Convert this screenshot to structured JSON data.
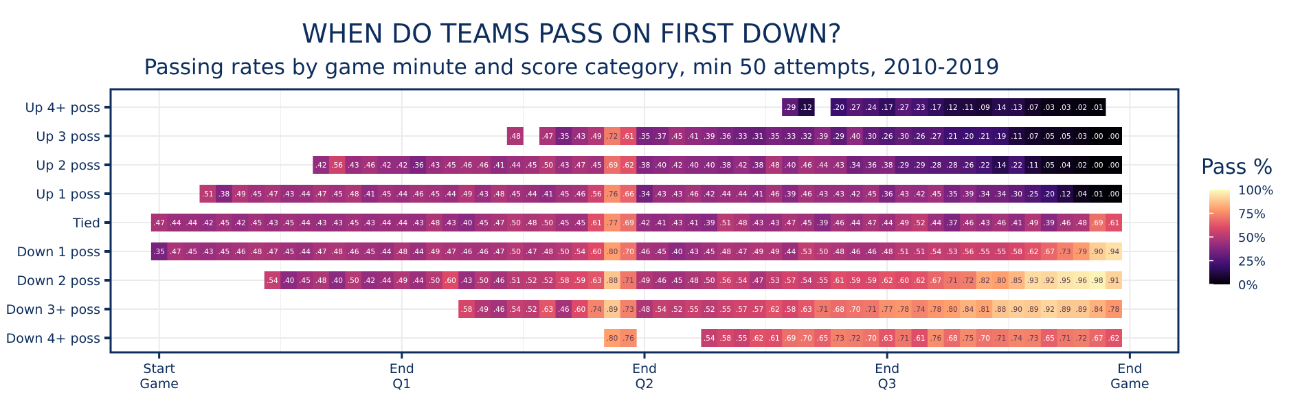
{
  "chart_data": {
    "type": "heatmap",
    "title": "WHEN DO TEAMS PASS ON FIRST DOWN?",
    "subtitle": "Passing rates by game minute and score category, min 50 attempts, 2010-2019",
    "rows": [
      "Up 4+ poss",
      "Up 3 poss",
      "Up 2 poss",
      "Up 1 poss",
      "Tied",
      "Down 1 poss",
      "Down 2 poss",
      "Down 3+ poss",
      "Down 4+ poss"
    ],
    "x_ticks": [
      {
        "minute": 0,
        "line1": "Start",
        "line2": "Game"
      },
      {
        "minute": 15,
        "line1": "End",
        "line2": "Q1"
      },
      {
        "minute": 30,
        "line1": "End",
        "line2": "Q2"
      },
      {
        "minute": 45,
        "line1": "End",
        "line2": "Q3"
      },
      {
        "minute": 60,
        "line1": "End",
        "line2": "Game"
      }
    ],
    "xlim": [
      -3,
      63
    ],
    "grid": true,
    "values": [
      {
        "row": "Up 4+ poss",
        "start": 39,
        "values": [
          ".29",
          ".12",
          "",
          ".20",
          ".27",
          ".24",
          ".17",
          ".27",
          ".23",
          ".17",
          ".12",
          ".11",
          ".09",
          ".14",
          ".13",
          ".07",
          ".03",
          ".03",
          ".02",
          ".01"
        ]
      },
      {
        "row": "Up 3 poss",
        "start": 22,
        "values": [
          ".48",
          "",
          ".47",
          ".35",
          ".43",
          ".49",
          ".72",
          ".61",
          ".35",
          ".37",
          ".45",
          ".41",
          ".39",
          ".36",
          ".33",
          ".31",
          ".35",
          ".33",
          ".32",
          ".39",
          ".29",
          ".40",
          ".30",
          ".26",
          ".30",
          ".26",
          ".27",
          ".21",
          ".20",
          ".21",
          ".19",
          ".11",
          ".07",
          ".05",
          ".05",
          ".03",
          ".00",
          ".00"
        ]
      },
      {
        "row": "Up 2 poss",
        "start": 10,
        "values": [
          ".42",
          ".56",
          ".43",
          ".46",
          ".42",
          ".42",
          ".36",
          ".43",
          ".45",
          ".46",
          ".46",
          ".41",
          ".44",
          ".45",
          ".50",
          ".43",
          ".47",
          ".45",
          ".69",
          ".62",
          ".38",
          ".40",
          ".42",
          ".40",
          ".40",
          ".38",
          ".42",
          ".38",
          ".48",
          ".40",
          ".46",
          ".44",
          ".43",
          ".34",
          ".36",
          ".38",
          ".29",
          ".29",
          ".28",
          ".28",
          ".26",
          ".22",
          ".14",
          ".22",
          ".11",
          ".05",
          ".04",
          ".02",
          ".00",
          ".00"
        ]
      },
      {
        "row": "Up 1 poss",
        "start": 3,
        "values": [
          ".51",
          ".38",
          ".49",
          ".45",
          ".47",
          ".43",
          ".44",
          ".47",
          ".45",
          ".48",
          ".41",
          ".45",
          ".44",
          ".46",
          ".45",
          ".44",
          ".49",
          ".43",
          ".48",
          ".45",
          ".44",
          ".41",
          ".45",
          ".46",
          ".56",
          ".76",
          ".66",
          ".34",
          ".43",
          ".43",
          ".46",
          ".42",
          ".44",
          ".44",
          ".41",
          ".46",
          ".39",
          ".46",
          ".43",
          ".43",
          ".42",
          ".45",
          ".36",
          ".43",
          ".42",
          ".45",
          ".35",
          ".39",
          ".34",
          ".34",
          ".30",
          ".25",
          ".20",
          ".12",
          ".04",
          ".01",
          ".00"
        ]
      },
      {
        "row": "Tied",
        "start": 0,
        "values": [
          ".47",
          ".44",
          ".44",
          ".42",
          ".45",
          ".42",
          ".45",
          ".43",
          ".45",
          ".44",
          ".43",
          ".43",
          ".45",
          ".43",
          ".44",
          ".44",
          ".43",
          ".48",
          ".43",
          ".40",
          ".45",
          ".47",
          ".50",
          ".48",
          ".50",
          ".45",
          ".45",
          ".61",
          ".77",
          ".69",
          ".42",
          ".41",
          ".43",
          ".41",
          ".39",
          ".51",
          ".48",
          ".43",
          ".43",
          ".47",
          ".45",
          ".39",
          ".46",
          ".44",
          ".47",
          ".44",
          ".49",
          ".52",
          ".44",
          ".37",
          ".46",
          ".43",
          ".46",
          ".41",
          ".49",
          ".39",
          ".46",
          ".48",
          ".69",
          ".61"
        ]
      },
      {
        "row": "Down 1 poss",
        "start": 0,
        "values": [
          ".35",
          ".47",
          ".45",
          ".43",
          ".45",
          ".46",
          ".48",
          ".47",
          ".45",
          ".44",
          ".47",
          ".48",
          ".46",
          ".45",
          ".44",
          ".48",
          ".44",
          ".49",
          ".47",
          ".46",
          ".46",
          ".47",
          ".50",
          ".47",
          ".48",
          ".50",
          ".54",
          ".60",
          ".80",
          ".70",
          ".46",
          ".45",
          ".40",
          ".43",
          ".45",
          ".48",
          ".47",
          ".49",
          ".49",
          ".44",
          ".53",
          ".50",
          ".48",
          ".46",
          ".46",
          ".48",
          ".51",
          ".51",
          ".54",
          ".53",
          ".56",
          ".55",
          ".55",
          ".58",
          ".62",
          ".67",
          ".73",
          ".79",
          ".90",
          ".94"
        ]
      },
      {
        "row": "Down 2 poss",
        "start": 7,
        "values": [
          ".54",
          ".40",
          ".45",
          ".48",
          ".40",
          ".50",
          ".42",
          ".44",
          ".49",
          ".44",
          ".50",
          ".60",
          ".43",
          ".50",
          ".46",
          ".51",
          ".52",
          ".52",
          ".58",
          ".59",
          ".63",
          ".88",
          ".71",
          ".49",
          ".46",
          ".45",
          ".48",
          ".50",
          ".56",
          ".54",
          ".47",
          ".53",
          ".57",
          ".54",
          ".55",
          ".61",
          ".59",
          ".59",
          ".62",
          ".60",
          ".62",
          ".67",
          ".71",
          ".72",
          ".82",
          ".80",
          ".85",
          ".93",
          ".92",
          ".95",
          ".96",
          ".98",
          ".91"
        ]
      },
      {
        "row": "Down 3+ poss",
        "start": 19,
        "values": [
          ".58",
          ".49",
          ".46",
          ".54",
          ".52",
          ".63",
          ".46",
          ".60",
          ".74",
          ".89",
          ".73",
          ".48",
          ".54",
          ".52",
          ".55",
          ".52",
          ".55",
          ".57",
          ".57",
          ".62",
          ".58",
          ".63",
          ".71",
          ".68",
          ".70",
          ".71",
          ".77",
          ".78",
          ".74",
          ".78",
          ".80",
          ".84",
          ".81",
          ".88",
          ".90",
          ".89",
          ".92",
          ".89",
          ".89",
          ".84",
          ".78"
        ]
      },
      {
        "row": "Down 4+ poss",
        "start": 28,
        "values": [
          ".80",
          ".76",
          "",
          "",
          "",
          "",
          ".54",
          ".58",
          ".55",
          ".62",
          ".61",
          ".69",
          ".70",
          ".65",
          ".73",
          ".72",
          ".70",
          ".63",
          ".71",
          ".61",
          ".76",
          ".68",
          ".75",
          ".70",
          ".71",
          ".74",
          ".73",
          ".65",
          ".71",
          ".72",
          ".67",
          ".62"
        ]
      }
    ],
    "legend": {
      "title": "Pass %",
      "ticks": [
        "100%",
        "75%",
        "50%",
        "25%",
        "0%"
      ],
      "colors": [
        "#000004",
        "#3b0f70",
        "#8c2981",
        "#de4968",
        "#fe9f6d",
        "#fcfdbf"
      ],
      "placement": "right"
    }
  }
}
